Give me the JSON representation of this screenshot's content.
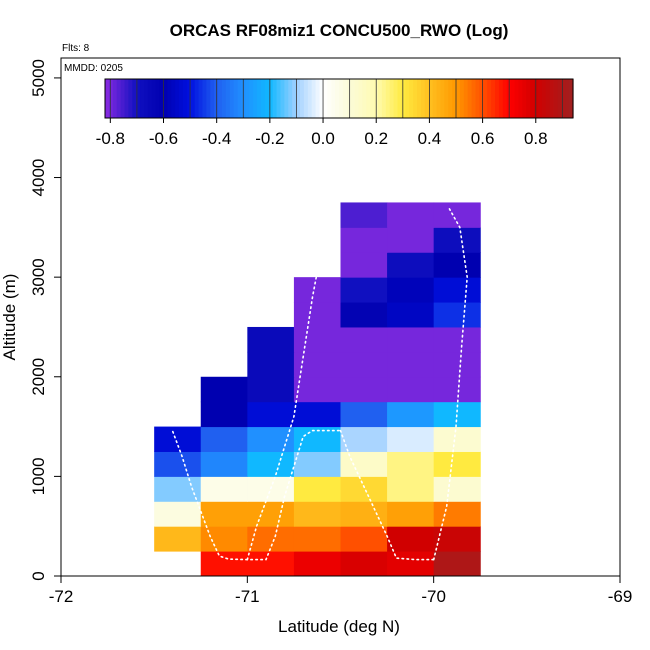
{
  "chart_data": {
    "type": "heatmap",
    "title": "ORCAS RF08miz1 CONCU500_RWO (Log)",
    "xlabel": "Latitude (deg N)",
    "ylabel": "Altitude (m)",
    "flts_label": "Flts: 8",
    "mmdd_label": "MMDD: 0205",
    "xlim": [
      -72,
      -69
    ],
    "ylim": [
      0,
      5200
    ],
    "x_ticks": [
      -72,
      -71,
      -70,
      -69
    ],
    "x_tick_labels": [
      "-72",
      "-71",
      "-70",
      "-69"
    ],
    "y_ticks": [
      0,
      1000,
      2000,
      3000,
      4000,
      5000
    ],
    "y_tick_labels": [
      "0",
      "1000",
      "2000",
      "3000",
      "4000",
      "5000"
    ],
    "colorbar": {
      "range": [
        -0.82,
        0.94
      ],
      "ticks": [
        -0.8,
        -0.6,
        -0.4,
        -0.2,
        0.0,
        0.2,
        0.4,
        0.6,
        0.8
      ],
      "tick_labels": [
        "-0.8",
        "-0.6",
        "-0.4",
        "-0.2",
        "0.0",
        "0.2",
        "0.4",
        "0.6",
        "0.8"
      ],
      "stops": [
        [
          -0.82,
          "#8a2be2"
        ],
        [
          -0.7,
          "#1010c0"
        ],
        [
          -0.6,
          "#0000b0"
        ],
        [
          -0.5,
          "#0010e0"
        ],
        [
          -0.4,
          "#2060f0"
        ],
        [
          -0.3,
          "#2090ff"
        ],
        [
          -0.2,
          "#10b8ff"
        ],
        [
          -0.1,
          "#a0d0ff"
        ],
        [
          0.0,
          "#ffffff"
        ],
        [
          0.1,
          "#fbfbd8"
        ],
        [
          0.2,
          "#fffbb0"
        ],
        [
          0.3,
          "#ffea40"
        ],
        [
          0.4,
          "#ffc020"
        ],
        [
          0.5,
          "#ff9800"
        ],
        [
          0.6,
          "#ff5000"
        ],
        [
          0.7,
          "#ff0000"
        ],
        [
          0.8,
          "#d00000"
        ],
        [
          0.94,
          "#a02020"
        ]
      ]
    },
    "lat_edges": [
      -71.5,
      -71.25,
      -71.0,
      -70.75,
      -70.5,
      -70.25,
      -70.0,
      -69.75
    ],
    "alt_edges": [
      0,
      250,
      500,
      750,
      1000,
      1250,
      1500,
      1750,
      2000,
      2250,
      2500,
      2750,
      3000,
      3250,
      3500,
      3750
    ],
    "cells": [
      {
        "lat_col": 1,
        "alt_row": 0,
        "value": 0.68
      },
      {
        "lat_col": 2,
        "alt_row": 0,
        "value": 0.68
      },
      {
        "lat_col": 3,
        "alt_row": 0,
        "value": 0.74
      },
      {
        "lat_col": 4,
        "alt_row": 0,
        "value": 0.78
      },
      {
        "lat_col": 5,
        "alt_row": 0,
        "value": 0.76
      },
      {
        "lat_col": 6,
        "alt_row": 0,
        "value": 0.9
      },
      {
        "lat_col": 0,
        "alt_row": 1,
        "value": 0.42
      },
      {
        "lat_col": 1,
        "alt_row": 1,
        "value": 0.52
      },
      {
        "lat_col": 2,
        "alt_row": 1,
        "value": 0.56
      },
      {
        "lat_col": 3,
        "alt_row": 1,
        "value": 0.56
      },
      {
        "lat_col": 4,
        "alt_row": 1,
        "value": 0.6
      },
      {
        "lat_col": 5,
        "alt_row": 1,
        "value": 0.8
      },
      {
        "lat_col": 6,
        "alt_row": 1,
        "value": 0.82
      },
      {
        "lat_col": 0,
        "alt_row": 2,
        "value": 0.08
      },
      {
        "lat_col": 1,
        "alt_row": 2,
        "value": 0.48
      },
      {
        "lat_col": 2,
        "alt_row": 2,
        "value": 0.48
      },
      {
        "lat_col": 3,
        "alt_row": 2,
        "value": 0.42
      },
      {
        "lat_col": 4,
        "alt_row": 2,
        "value": 0.44
      },
      {
        "lat_col": 5,
        "alt_row": 2,
        "value": 0.48
      },
      {
        "lat_col": 6,
        "alt_row": 2,
        "value": 0.54
      },
      {
        "lat_col": 0,
        "alt_row": 3,
        "value": -0.12
      },
      {
        "lat_col": 1,
        "alt_row": 3,
        "value": 0.06
      },
      {
        "lat_col": 2,
        "alt_row": 3,
        "value": 0.06
      },
      {
        "lat_col": 3,
        "alt_row": 3,
        "value": 0.3
      },
      {
        "lat_col": 4,
        "alt_row": 3,
        "value": 0.34
      },
      {
        "lat_col": 5,
        "alt_row": 3,
        "value": 0.24
      },
      {
        "lat_col": 6,
        "alt_row": 3,
        "value": 0.12
      },
      {
        "lat_col": 0,
        "alt_row": 4,
        "value": -0.42
      },
      {
        "lat_col": 1,
        "alt_row": 4,
        "value": -0.32
      },
      {
        "lat_col": 2,
        "alt_row": 4,
        "value": -0.2
      },
      {
        "lat_col": 3,
        "alt_row": 4,
        "value": -0.12
      },
      {
        "lat_col": 4,
        "alt_row": 4,
        "value": 0.14
      },
      {
        "lat_col": 5,
        "alt_row": 4,
        "value": 0.24
      },
      {
        "lat_col": 6,
        "alt_row": 4,
        "value": 0.3
      },
      {
        "lat_col": 0,
        "alt_row": 5,
        "value": -0.52
      },
      {
        "lat_col": 1,
        "alt_row": 5,
        "value": -0.4
      },
      {
        "lat_col": 2,
        "alt_row": 5,
        "value": -0.3
      },
      {
        "lat_col": 3,
        "alt_row": 5,
        "value": -0.2
      },
      {
        "lat_col": 4,
        "alt_row": 5,
        "value": -0.09
      },
      {
        "lat_col": 5,
        "alt_row": 5,
        "value": -0.04
      },
      {
        "lat_col": 6,
        "alt_row": 5,
        "value": 0.12
      },
      {
        "lat_col": 1,
        "alt_row": 6,
        "value": -0.6
      },
      {
        "lat_col": 2,
        "alt_row": 6,
        "value": -0.52
      },
      {
        "lat_col": 3,
        "alt_row": 6,
        "value": -0.52
      },
      {
        "lat_col": 4,
        "alt_row": 6,
        "value": -0.4
      },
      {
        "lat_col": 5,
        "alt_row": 6,
        "value": -0.28
      },
      {
        "lat_col": 6,
        "alt_row": 6,
        "value": -0.2
      },
      {
        "lat_col": 1,
        "alt_row": 7,
        "value": -0.6
      },
      {
        "lat_col": 2,
        "alt_row": 7,
        "value": -0.66
      },
      {
        "lat_col": 3,
        "alt_row": 7,
        "value": -0.8
      },
      {
        "lat_col": 4,
        "alt_row": 7,
        "value": -0.8
      },
      {
        "lat_col": 5,
        "alt_row": 7,
        "value": -0.8
      },
      {
        "lat_col": 6,
        "alt_row": 7,
        "value": -0.8
      },
      {
        "lat_col": 2,
        "alt_row": 8,
        "value": -0.66
      },
      {
        "lat_col": 3,
        "alt_row": 8,
        "value": -0.8
      },
      {
        "lat_col": 4,
        "alt_row": 8,
        "value": -0.8
      },
      {
        "lat_col": 5,
        "alt_row": 8,
        "value": -0.8
      },
      {
        "lat_col": 6,
        "alt_row": 8,
        "value": -0.8
      },
      {
        "lat_col": 2,
        "alt_row": 9,
        "value": -0.66
      },
      {
        "lat_col": 3,
        "alt_row": 9,
        "value": -0.8
      },
      {
        "lat_col": 4,
        "alt_row": 9,
        "value": -0.8
      },
      {
        "lat_col": 5,
        "alt_row": 9,
        "value": -0.8
      },
      {
        "lat_col": 6,
        "alt_row": 9,
        "value": -0.8
      },
      {
        "lat_col": 3,
        "alt_row": 10,
        "value": -0.8
      },
      {
        "lat_col": 4,
        "alt_row": 10,
        "value": -0.62
      },
      {
        "lat_col": 5,
        "alt_row": 10,
        "value": -0.56
      },
      {
        "lat_col": 6,
        "alt_row": 10,
        "value": -0.46
      },
      {
        "lat_col": 3,
        "alt_row": 11,
        "value": -0.8
      },
      {
        "lat_col": 4,
        "alt_row": 11,
        "value": -0.7
      },
      {
        "lat_col": 5,
        "alt_row": 11,
        "value": -0.58
      },
      {
        "lat_col": 6,
        "alt_row": 11,
        "value": -0.52
      },
      {
        "lat_col": 4,
        "alt_row": 12,
        "value": -0.8
      },
      {
        "lat_col": 5,
        "alt_row": 12,
        "value": -0.68
      },
      {
        "lat_col": 6,
        "alt_row": 12,
        "value": -0.6
      },
      {
        "lat_col": 4,
        "alt_row": 13,
        "value": -0.8
      },
      {
        "lat_col": 5,
        "alt_row": 13,
        "value": -0.8
      },
      {
        "lat_col": 6,
        "alt_row": 13,
        "value": -0.68
      },
      {
        "lat_col": 4,
        "alt_row": 14,
        "value": -0.76
      },
      {
        "lat_col": 5,
        "alt_row": 14,
        "value": -0.8
      },
      {
        "lat_col": 6,
        "alt_row": 14,
        "value": -0.8
      }
    ],
    "flight_tracks": [
      [
        [
          -71.4,
          1450
        ],
        [
          -71.35,
          1200
        ],
        [
          -71.3,
          900
        ],
        [
          -71.25,
          650
        ],
        [
          -71.2,
          400
        ],
        [
          -71.15,
          200
        ],
        [
          -71.1,
          170
        ],
        [
          -71.0,
          165
        ],
        [
          -70.9,
          165
        ],
        [
          -70.85,
          400
        ],
        [
          -70.8,
          800
        ],
        [
          -70.75,
          1100
        ],
        [
          -70.7,
          1400
        ],
        [
          -70.65,
          1460
        ],
        [
          -70.5,
          1460
        ]
      ],
      [
        [
          -70.5,
          1460
        ],
        [
          -70.45,
          1200
        ],
        [
          -70.35,
          800
        ],
        [
          -70.25,
          400
        ],
        [
          -70.2,
          180
        ],
        [
          -70.1,
          165
        ],
        [
          -70.0,
          165
        ]
      ],
      [
        [
          -71.0,
          165
        ],
        [
          -70.95,
          500
        ],
        [
          -70.85,
          1000
        ],
        [
          -70.75,
          1600
        ],
        [
          -70.7,
          2200
        ],
        [
          -70.65,
          2800
        ],
        [
          -70.6,
          3300
        ],
        [
          -70.52,
          3700
        ]
      ],
      [
        [
          -70.0,
          165
        ],
        [
          -69.93,
          700
        ],
        [
          -69.88,
          1500
        ],
        [
          -69.85,
          2300
        ],
        [
          -69.82,
          3000
        ],
        [
          -69.86,
          3500
        ],
        [
          -69.92,
          3700
        ]
      ]
    ]
  }
}
